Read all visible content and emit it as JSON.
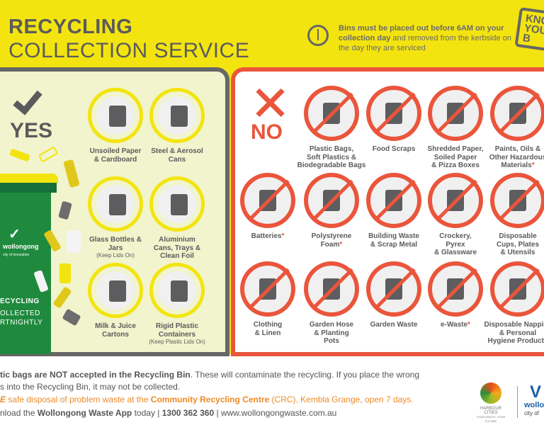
{
  "header": {
    "title_line1": "RECYCLING",
    "title_line2": "COLLECTION SERVICE",
    "notice_bold": "Bins must be placed out before 6AM on your collection day",
    "notice_rest": " and removed from the kerbside on the day they are serviced",
    "badge": "KNOW YOUR B"
  },
  "yes_panel": {
    "heading": "YES",
    "bin_logo": "wollongong",
    "bin_logo_sub": "city of innovation",
    "bin_text": [
      "ECYCLING",
      "OLLECTED",
      "RTNIGHTLY"
    ],
    "items": [
      {
        "label": "Unsoiled Paper\n& Cardboard",
        "icon": "newspaper-icon"
      },
      {
        "label": "Steel & Aerosol\nCans",
        "icon": "aerosol-can-icon"
      },
      {
        "label": "Glass Bottles &\nJars",
        "note": "(Keep Lids On)",
        "icon": "glass-bottle-jar-icon"
      },
      {
        "label": "Aluminium\nCans, Trays &\nClean Foil",
        "icon": "aluminium-can-icon"
      },
      {
        "label": "Milk & Juice\nCartons",
        "icon": "milk-carton-icon"
      },
      {
        "label": "Rigid Plastic\nContainers",
        "note": "(Keep Plastic Lids On)",
        "icon": "plastic-bottle-icon"
      }
    ]
  },
  "no_panel": {
    "heading": "NO",
    "items": [
      {
        "label": "Plastic Bags,\nSoft Plastics &\nBiodegradable Bags",
        "icon": "plastic-bag-icon"
      },
      {
        "label": "Food Scraps",
        "icon": "food-scraps-icon"
      },
      {
        "label": "Shredded Paper,\nSoiled Paper\n& Pizza Boxes",
        "icon": "pizza-box-icon"
      },
      {
        "label": "Paints, Oils &\nOther Hazardous\nMaterials",
        "asterisk": "*",
        "icon": "paint-can-icon"
      },
      {
        "label": "Batteries",
        "asterisk": "*",
        "icon": "battery-icon"
      },
      {
        "label": "Polystyrene\nFoam",
        "asterisk": "*",
        "icon": "polystyrene-icon"
      },
      {
        "label": "Building Waste\n& Scrap Metal",
        "icon": "building-waste-icon"
      },
      {
        "label": "Crockery,\nPyrex\n& Glassware",
        "icon": "glassware-icon"
      },
      {
        "label": "Disposable\nCups, Plates\n& Utensils",
        "icon": "disposable-cup-icon"
      },
      {
        "label": "Clothing\n& Linen",
        "icon": "tshirt-icon"
      },
      {
        "label": "Garden Hose\n& Planting\nPots",
        "icon": "garden-hose-icon"
      },
      {
        "label": "Garden Waste",
        "icon": "garden-waste-icon"
      },
      {
        "label": "e-Waste",
        "asterisk": "*",
        "icon": "phone-icon"
      },
      {
        "label": "Disposable Nappies\n& Personal\nHygiene Products",
        "icon": "nappy-icon"
      }
    ]
  },
  "footer": {
    "line1_bold": "tic bags are NOT accepted in the Recycling Bin",
    "line1_rest": ". These will contaminate the recycling. If you place the wrong",
    "line2": "s into the Recycling Bin, it may not be collected.",
    "line3_em": "E",
    "line3_a": " safe disposal of problem waste at the ",
    "line3_bold": "Community Recycling Centre",
    "line3_b": " (CRC), Kembla Grange, open 7 days.",
    "line4_a": "nload the ",
    "line4_bold1": "Wollongong Waste App",
    "line4_b": " today | ",
    "line4_bold2": "1300 362 360",
    "line4_c": " | www.wollongongwaste.com.au",
    "logo1": "HARBOUR CITIES",
    "logo1_sub": "YOUR WASTE, YOUR FUTURE",
    "logo2": "wollo",
    "logo2_sub": "city of"
  },
  "colors": {
    "yellow": "#f3e40f",
    "red": "#ea553b",
    "gray": "#5b5b5d",
    "green": "#1f8a3e",
    "orange": "#f08a24"
  }
}
